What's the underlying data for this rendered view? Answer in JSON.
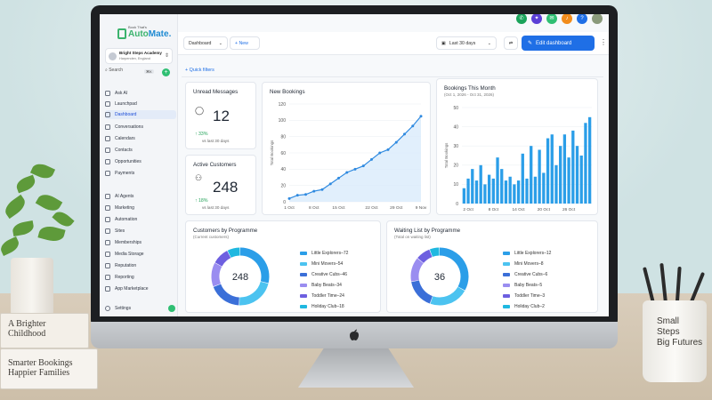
{
  "scene": {
    "books": [
      {
        "line1": "A Brighter",
        "line2": "Childhood"
      },
      {
        "line1": "Smarter Bookings",
        "line2": "Happier Families"
      }
    ],
    "cup": {
      "line1": "Small",
      "line2": "Steps",
      "line3": "Big Futures"
    }
  },
  "app": {
    "logo": {
      "small": "Book That's",
      "main_a": "Auto",
      "main_b": "Mate."
    },
    "account": {
      "name": "Bright Steps Academy",
      "location": "Harpenden, England"
    },
    "search": {
      "label": "Search",
      "shortcut": "⌘K"
    },
    "sidebar": {
      "items": [
        {
          "label": "Ask AI",
          "icon": "sparkle-icon",
          "active": false
        },
        {
          "label": "Launchpad",
          "icon": "rocket-icon",
          "active": false
        },
        {
          "label": "Dashboard",
          "icon": "grid-icon",
          "active": true
        },
        {
          "label": "Conversations",
          "icon": "chat-icon",
          "active": false
        },
        {
          "label": "Calendars",
          "icon": "calendar-icon",
          "active": false
        },
        {
          "label": "Contacts",
          "icon": "contacts-icon",
          "active": false
        },
        {
          "label": "Opportunities",
          "icon": "funnel-icon",
          "active": false
        },
        {
          "label": "Payments",
          "icon": "card-icon",
          "active": false
        },
        {
          "label": "AI Agents",
          "icon": "robot-icon",
          "active": false
        },
        {
          "label": "Marketing",
          "icon": "megaphone-icon",
          "active": false
        },
        {
          "label": "Automation",
          "icon": "workflow-icon",
          "active": false
        },
        {
          "label": "Sites",
          "icon": "globe-icon",
          "active": false
        },
        {
          "label": "Memberships",
          "icon": "badge-icon",
          "active": false
        },
        {
          "label": "Media Storage",
          "icon": "folder-icon",
          "active": false
        },
        {
          "label": "Reputation",
          "icon": "star-icon",
          "active": false
        },
        {
          "label": "Reporting",
          "icon": "chart-icon",
          "active": false
        },
        {
          "label": "App Marketplace",
          "icon": "store-icon",
          "active": false
        }
      ],
      "settings_label": "Settings"
    },
    "toolbar": {
      "dashboard_select": "Dashboard",
      "new_label": "+ New",
      "date_range": "Last 30 days",
      "edit_label": "Edit dashboard",
      "more": "⋮"
    },
    "top_icons": [
      {
        "name": "phone-icon",
        "color": "#1aa35a",
        "glyph": "✆"
      },
      {
        "name": "sparkle-icon",
        "color": "#5b3fd6",
        "glyph": "✦"
      },
      {
        "name": "megaphone-icon",
        "color": "#2fbf73",
        "glyph": "✉"
      },
      {
        "name": "bell-icon",
        "color": "#f28c1b",
        "glyph": "♪"
      },
      {
        "name": "help-icon",
        "color": "#1f6fe6",
        "glyph": "?"
      }
    ],
    "quick_filters": "+ Quick filters",
    "unread": {
      "title": "Unread Messages",
      "value": "12",
      "change": "33%",
      "sub": "vs last 30 days"
    },
    "active_customers": {
      "title": "Active Customers",
      "value": "248",
      "change": "18%",
      "sub": "vs last 30 days"
    },
    "new_bookings": {
      "title": "New Bookings",
      "ylabel": "Total Bookings"
    },
    "bookings_month": {
      "title": "Bookings This Month",
      "subtitle": "(Oct 1, 2026 - Oct 31, 2026)",
      "ylabel": "Total Bookings"
    },
    "customers_prog": {
      "title": "Customers by Programme",
      "subtitle": "(Current customers)",
      "center": "248"
    },
    "waiting_prog": {
      "title": "Waiting List by Programme",
      "subtitle": "(Total on waiting list)",
      "center": "36"
    }
  },
  "colors": {
    "accent": "#1f6fe6",
    "line": "#2f8ae0",
    "bar": "#2b9ee8",
    "positive": "#25a35a"
  },
  "chart_data": [
    {
      "type": "line",
      "title": "New Bookings",
      "ylabel": "Total Bookings",
      "x": [
        "1 Oct",
        "3 Oct",
        "5 Oct",
        "8 Oct",
        "11 Oct",
        "13 Oct",
        "15 Oct",
        "17 Oct",
        "19 Oct",
        "21 Oct",
        "22 Oct",
        "24 Oct",
        "26 Oct",
        "29 Oct",
        "31 Oct",
        "4 Nov",
        "9 Nov"
      ],
      "xticks": [
        "1 Oct",
        "8 Oct",
        "15 Oct",
        "22 Oct",
        "29 Oct",
        "9 Nov"
      ],
      "values": [
        4,
        8,
        9,
        13,
        15,
        22,
        29,
        36,
        40,
        44,
        52,
        60,
        64,
        73,
        83,
        93,
        105
      ],
      "ylim": [
        0,
        120
      ],
      "yticks": [
        0,
        20,
        40,
        60,
        80,
        100,
        120
      ]
    },
    {
      "type": "bar",
      "title": "Bookings This Month",
      "ylabel": "Total Bookings",
      "categories": [
        "1",
        "2",
        "3",
        "4",
        "5",
        "6",
        "7",
        "8",
        "9",
        "10",
        "11",
        "12",
        "13",
        "14",
        "15",
        "16",
        "17",
        "18",
        "19",
        "20",
        "21",
        "22",
        "23",
        "24",
        "25",
        "26",
        "27",
        "28",
        "29",
        "30",
        "31"
      ],
      "xticks": [
        "2 Oct",
        "8 Oct",
        "14 Oct",
        "20 Oct",
        "26 Oct"
      ],
      "values": [
        8,
        13,
        18,
        12,
        20,
        10,
        15,
        13,
        24,
        18,
        12,
        14,
        10,
        12,
        26,
        13,
        30,
        14,
        28,
        16,
        34,
        36,
        20,
        30,
        36,
        24,
        38,
        30,
        25,
        42,
        45
      ],
      "ylim": [
        0,
        50
      ],
      "yticks": [
        0,
        10,
        20,
        30,
        40,
        50
      ]
    },
    {
      "type": "pie",
      "title": "Customers by Programme",
      "labels": [
        "Little Explorers",
        "Mini Movers",
        "Creative Cubs",
        "Baby Beats",
        "Toddler Time",
        "Holiday Club"
      ],
      "values": [
        72,
        54,
        46,
        34,
        24,
        18
      ],
      "colors": [
        "#2b9ee8",
        "#4cc3f0",
        "#3b6fd8",
        "#9a8df0",
        "#6d5fe0",
        "#1fb8e0"
      ]
    },
    {
      "type": "pie",
      "title": "Waiting List by Programme",
      "labels": [
        "Little Explorers",
        "Mini Movers",
        "Creative Cubs",
        "Baby Beats",
        "Toddler Time",
        "Holiday Club"
      ],
      "values": [
        12,
        8,
        6,
        5,
        3,
        2
      ],
      "colors": [
        "#2b9ee8",
        "#4cc3f0",
        "#3b6fd8",
        "#9a8df0",
        "#6d5fe0",
        "#1fb8e0"
      ]
    }
  ]
}
